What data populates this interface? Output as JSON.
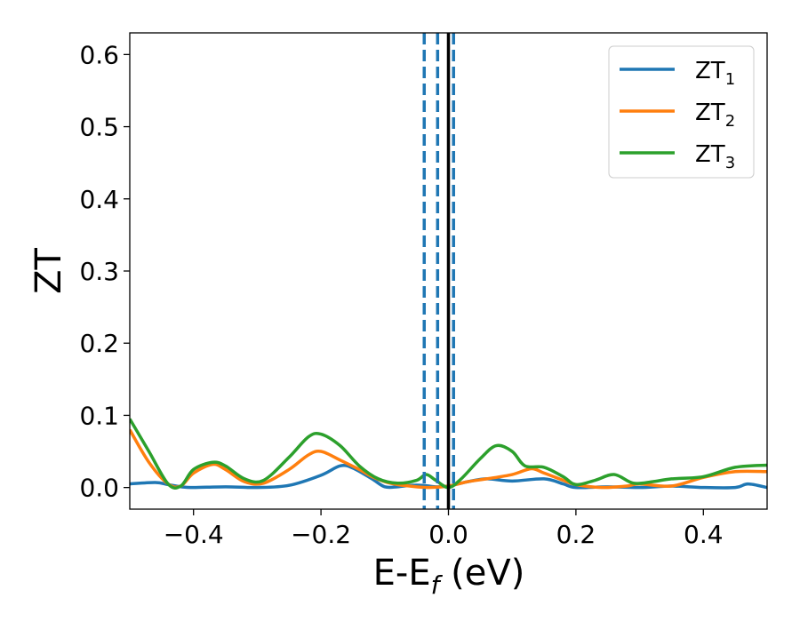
{
  "chart_data": {
    "type": "line",
    "title": "",
    "xlabel": {
      "main": "E-E",
      "sub": "f",
      "suffix": " (eV)"
    },
    "ylabel": "ZT",
    "xlim": [
      -0.5,
      0.5
    ],
    "ylim": [
      -0.03,
      0.63
    ],
    "xticks": [
      -0.4,
      -0.2,
      0.0,
      0.2,
      0.4
    ],
    "xtick_labels": [
      "−0.4",
      "−0.2",
      "0.0",
      "0.2",
      "0.4"
    ],
    "yticks": [
      0.0,
      0.1,
      0.2,
      0.3,
      0.4,
      0.5,
      0.6
    ],
    "ytick_labels": [
      "0.0",
      "0.1",
      "0.2",
      "0.3",
      "0.4",
      "0.5",
      "0.6"
    ],
    "grid": false,
    "legend_position": "top-right",
    "vertical_lines": [
      {
        "x": -0.038,
        "style": "dashed",
        "color": "#1f77b4"
      },
      {
        "x": -0.017,
        "style": "dashed",
        "color": "#1f77b4"
      },
      {
        "x": 0.008,
        "style": "dashed",
        "color": "#1f77b4"
      },
      {
        "x": 0.0,
        "style": "solid",
        "color": "#000000"
      }
    ],
    "series": [
      {
        "name": "ZT",
        "sub": "1",
        "color": "#1f77b4",
        "x": [
          -0.5,
          -0.46,
          -0.44,
          -0.42,
          -0.4,
          -0.35,
          -0.3,
          -0.25,
          -0.2,
          -0.17,
          -0.15,
          -0.12,
          -0.1,
          -0.08,
          -0.06,
          -0.04,
          -0.02,
          0.0,
          0.03,
          0.06,
          0.1,
          0.15,
          0.18,
          0.2,
          0.25,
          0.3,
          0.35,
          0.4,
          0.45,
          0.47,
          0.5
        ],
        "y": [
          0.005,
          0.007,
          0.004,
          0.001,
          0.0,
          0.001,
          0.0,
          0.003,
          0.017,
          0.03,
          0.027,
          0.012,
          0.001,
          0.001,
          0.003,
          0.003,
          0.001,
          0.002,
          0.008,
          0.012,
          0.009,
          0.012,
          0.005,
          0.0,
          0.001,
          0.0,
          0.002,
          0.0,
          0.0,
          0.005,
          0.0
        ]
      },
      {
        "name": "ZT",
        "sub": "2",
        "color": "#ff7f0e",
        "x": [
          -0.5,
          -0.47,
          -0.44,
          -0.42,
          -0.4,
          -0.37,
          -0.35,
          -0.32,
          -0.29,
          -0.25,
          -0.22,
          -0.2,
          -0.17,
          -0.14,
          -0.12,
          -0.1,
          -0.08,
          -0.05,
          -0.03,
          0.0,
          0.03,
          0.06,
          0.1,
          0.13,
          0.15,
          0.18,
          0.2,
          0.24,
          0.28,
          0.3,
          0.35,
          0.4,
          0.45,
          0.5
        ],
        "y": [
          0.08,
          0.035,
          0.005,
          0.002,
          0.02,
          0.032,
          0.025,
          0.008,
          0.006,
          0.025,
          0.045,
          0.05,
          0.038,
          0.025,
          0.015,
          0.008,
          0.004,
          0.001,
          0.0,
          0.002,
          0.008,
          0.012,
          0.018,
          0.026,
          0.02,
          0.01,
          0.004,
          0.0,
          0.002,
          0.005,
          0.002,
          0.014,
          0.022,
          0.022
        ]
      },
      {
        "name": "ZT",
        "sub": "3",
        "color": "#2ca02c",
        "x": [
          -0.5,
          -0.47,
          -0.44,
          -0.42,
          -0.4,
          -0.37,
          -0.35,
          -0.32,
          -0.29,
          -0.25,
          -0.22,
          -0.2,
          -0.17,
          -0.14,
          -0.11,
          -0.08,
          -0.05,
          -0.035,
          -0.02,
          0.0,
          0.02,
          0.05,
          0.075,
          0.1,
          0.12,
          0.15,
          0.18,
          0.2,
          0.23,
          0.26,
          0.29,
          0.32,
          0.35,
          0.4,
          0.45,
          0.5
        ],
        "y": [
          0.095,
          0.05,
          0.005,
          0.002,
          0.025,
          0.035,
          0.03,
          0.012,
          0.01,
          0.042,
          0.07,
          0.074,
          0.058,
          0.03,
          0.012,
          0.006,
          0.01,
          0.018,
          0.01,
          0.0,
          0.012,
          0.04,
          0.058,
          0.05,
          0.03,
          0.028,
          0.015,
          0.004,
          0.01,
          0.018,
          0.006,
          0.008,
          0.012,
          0.015,
          0.028,
          0.031
        ]
      }
    ]
  }
}
